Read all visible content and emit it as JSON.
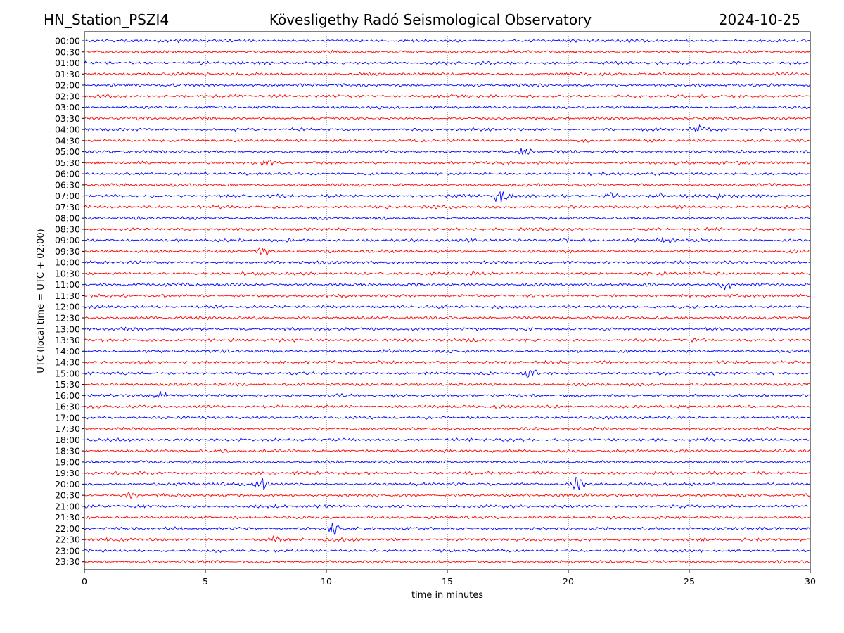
{
  "header": {
    "station": "HN_Station_PSZI4",
    "observatory": "Kövesligethy Radó Seismological Observatory",
    "date": "2024-10-25"
  },
  "colors": {
    "blue": "#0000ff",
    "red": "#ff0000",
    "grid": "#000000"
  },
  "chart_data": {
    "type": "line",
    "title": "Kövesligethy Radó Seismological Observatory",
    "xlabel": "time in minutes",
    "ylabel": "UTC (local time = UTC + 02:00)",
    "xlim": [
      0,
      30
    ],
    "x_ticks": [
      0,
      5,
      10,
      15,
      20,
      25,
      30
    ],
    "grid": "vertical dotted lines at 5-minute intervals",
    "trace_rows": [
      "00:00",
      "00:30",
      "01:00",
      "01:30",
      "02:00",
      "02:30",
      "03:00",
      "03:30",
      "04:00",
      "04:30",
      "05:00",
      "05:30",
      "06:00",
      "06:30",
      "07:00",
      "07:30",
      "08:00",
      "08:30",
      "09:00",
      "09:30",
      "10:00",
      "10:30",
      "11:00",
      "11:30",
      "12:00",
      "12:30",
      "13:00",
      "13:30",
      "14:00",
      "14:30",
      "15:00",
      "15:30",
      "16:00",
      "16:30",
      "17:00",
      "17:30",
      "18:00",
      "18:30",
      "19:00",
      "19:30",
      "20:00",
      "20:30",
      "21:00",
      "21:30",
      "22:00",
      "22:30",
      "23:00",
      "23:30"
    ],
    "row_colors": [
      "blue",
      "red"
    ],
    "events": [
      {
        "row": "04:00",
        "minute": 25.3,
        "size": 1.0
      },
      {
        "row": "05:00",
        "minute": 18.2,
        "size": 0.9
      },
      {
        "row": "05:30",
        "minute": 7.5,
        "size": 0.9
      },
      {
        "row": "07:00",
        "minute": 17.2,
        "size": 2.2
      },
      {
        "row": "07:00",
        "minute": 21.8,
        "size": 1.0
      },
      {
        "row": "07:00",
        "minute": 23.9,
        "size": 1.0
      },
      {
        "row": "07:00",
        "minute": 26.1,
        "size": 0.9
      },
      {
        "row": "09:00",
        "minute": 20.0,
        "size": 1.0
      },
      {
        "row": "09:00",
        "minute": 24.0,
        "size": 1.4
      },
      {
        "row": "09:30",
        "minute": 7.4,
        "size": 1.6
      },
      {
        "row": "11:00",
        "minute": 26.5,
        "size": 1.6
      },
      {
        "row": "15:00",
        "minute": 18.5,
        "size": 2.0
      },
      {
        "row": "16:00",
        "minute": 3.1,
        "size": 0.9
      },
      {
        "row": "20:00",
        "minute": 7.3,
        "size": 2.4
      },
      {
        "row": "20:00",
        "minute": 20.4,
        "size": 2.0
      },
      {
        "row": "20:30",
        "minute": 2.0,
        "size": 0.9
      },
      {
        "row": "22:00",
        "minute": 10.3,
        "size": 1.6
      },
      {
        "row": "22:30",
        "minute": 7.8,
        "size": 0.8
      }
    ]
  }
}
